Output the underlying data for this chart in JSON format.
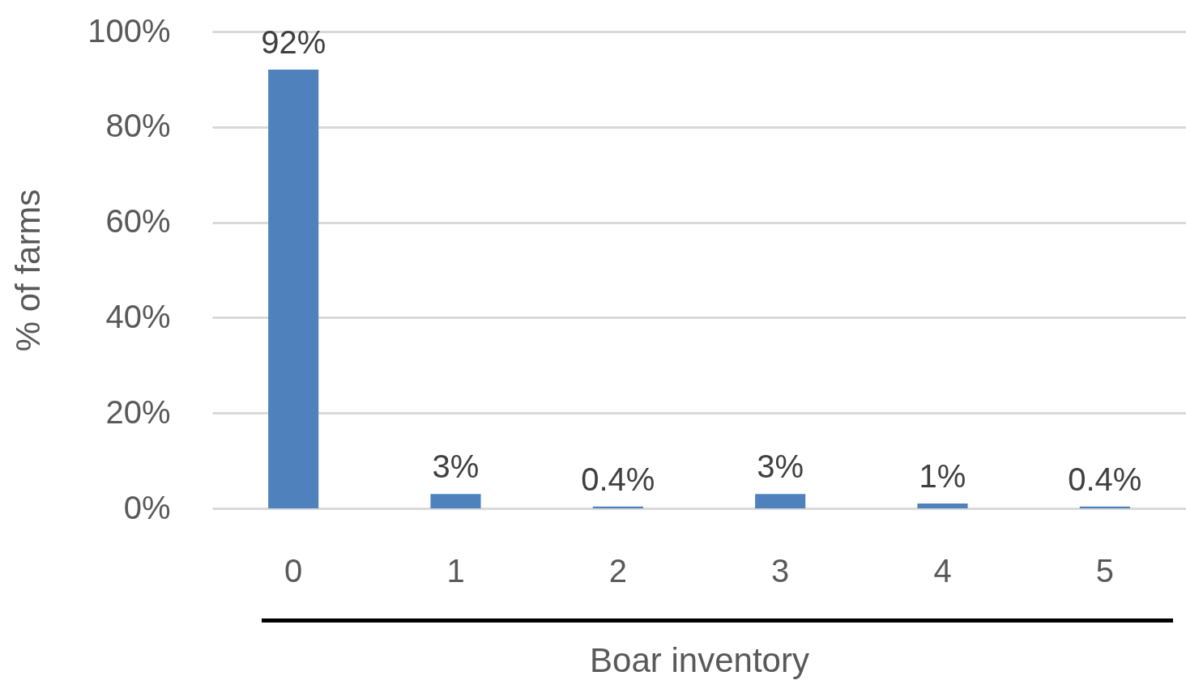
{
  "chart_data": {
    "type": "bar",
    "xlabel": "Boar inventory",
    "ylabel": "% of farms",
    "categories": [
      "0",
      "1",
      "2",
      "3",
      "4",
      "5"
    ],
    "values": [
      92,
      3,
      0.4,
      3,
      1,
      0.4
    ],
    "value_labels": [
      "92%",
      "3%",
      "0.4%",
      "3%",
      "1%",
      "0.4%"
    ],
    "color": "#4f81bd",
    "ylim": [
      0,
      100
    ],
    "yticks": [
      {
        "value": 0,
        "label": "0%"
      },
      {
        "value": 20,
        "label": "20%"
      },
      {
        "value": 40,
        "label": "40%"
      },
      {
        "value": 60,
        "label": "60%"
      },
      {
        "value": 80,
        "label": "80%"
      },
      {
        "value": 100,
        "label": "100%"
      }
    ],
    "grid": "y"
  }
}
